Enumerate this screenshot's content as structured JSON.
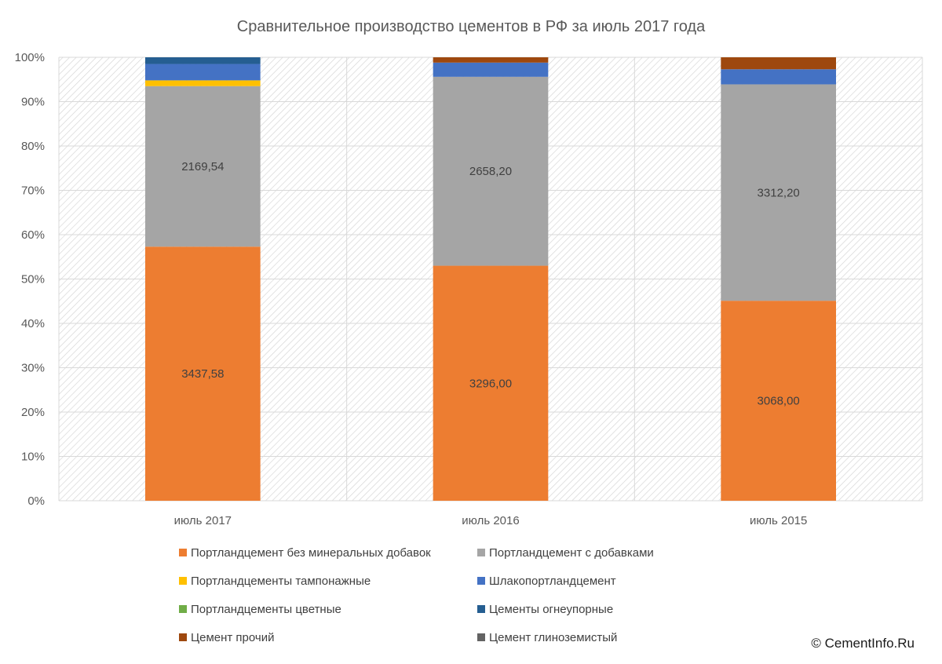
{
  "chart_data": {
    "type": "bar",
    "stacked": true,
    "percent_stacked": true,
    "title": "Сравнительное производство цементов в РФ за июль 2017 года",
    "categories": [
      "июль 2017",
      "июль 2016",
      "июль 2015"
    ],
    "y_ticks": [
      "0%",
      "10%",
      "20%",
      "30%",
      "40%",
      "50%",
      "60%",
      "70%",
      "80%",
      "90%",
      "100%"
    ],
    "ylim": [
      0,
      100
    ],
    "grid": true,
    "legend_position": "bottom",
    "series": [
      {
        "name": "Портландцемент без минеральных добавок",
        "color": "#ED7D31",
        "values": [
          57.3,
          53.0,
          45.1
        ],
        "labels": [
          "3437,58",
          "3296,00",
          "3068,00"
        ]
      },
      {
        "name": "Портландцемент с добавками",
        "color": "#A5A5A5",
        "values": [
          36.2,
          42.6,
          48.8
        ],
        "labels": [
          "2169,54",
          "2658,20",
          "3312,20"
        ]
      },
      {
        "name": "Портландцементы тампонажные",
        "color": "#FFC000",
        "values": [
          1.3,
          0.0,
          0.0
        ],
        "labels": [
          "",
          "",
          ""
        ]
      },
      {
        "name": "Шлакопортландцемент",
        "color": "#4472C4",
        "values": [
          3.7,
          3.2,
          3.4
        ],
        "labels": [
          "",
          "",
          ""
        ]
      },
      {
        "name": "Портландцементы цветные",
        "color": "#70AD47",
        "values": [
          0.0,
          0.0,
          0.0
        ],
        "labels": [
          "",
          "",
          ""
        ]
      },
      {
        "name": "Цементы огнеупорные",
        "color": "#255E91",
        "values": [
          1.5,
          0.0,
          0.0
        ],
        "labels": [
          "",
          "",
          ""
        ]
      },
      {
        "name": "Цемент прочий",
        "color": "#9E480E",
        "values": [
          0.0,
          1.2,
          2.7
        ],
        "labels": [
          "",
          "",
          ""
        ]
      },
      {
        "name": "Цемент глиноземистый",
        "color": "#636363",
        "values": [
          0.0,
          0.0,
          0.0
        ],
        "labels": [
          "",
          "",
          ""
        ]
      }
    ]
  },
  "footer": {
    "copyright": "© CementInfo.Ru"
  }
}
